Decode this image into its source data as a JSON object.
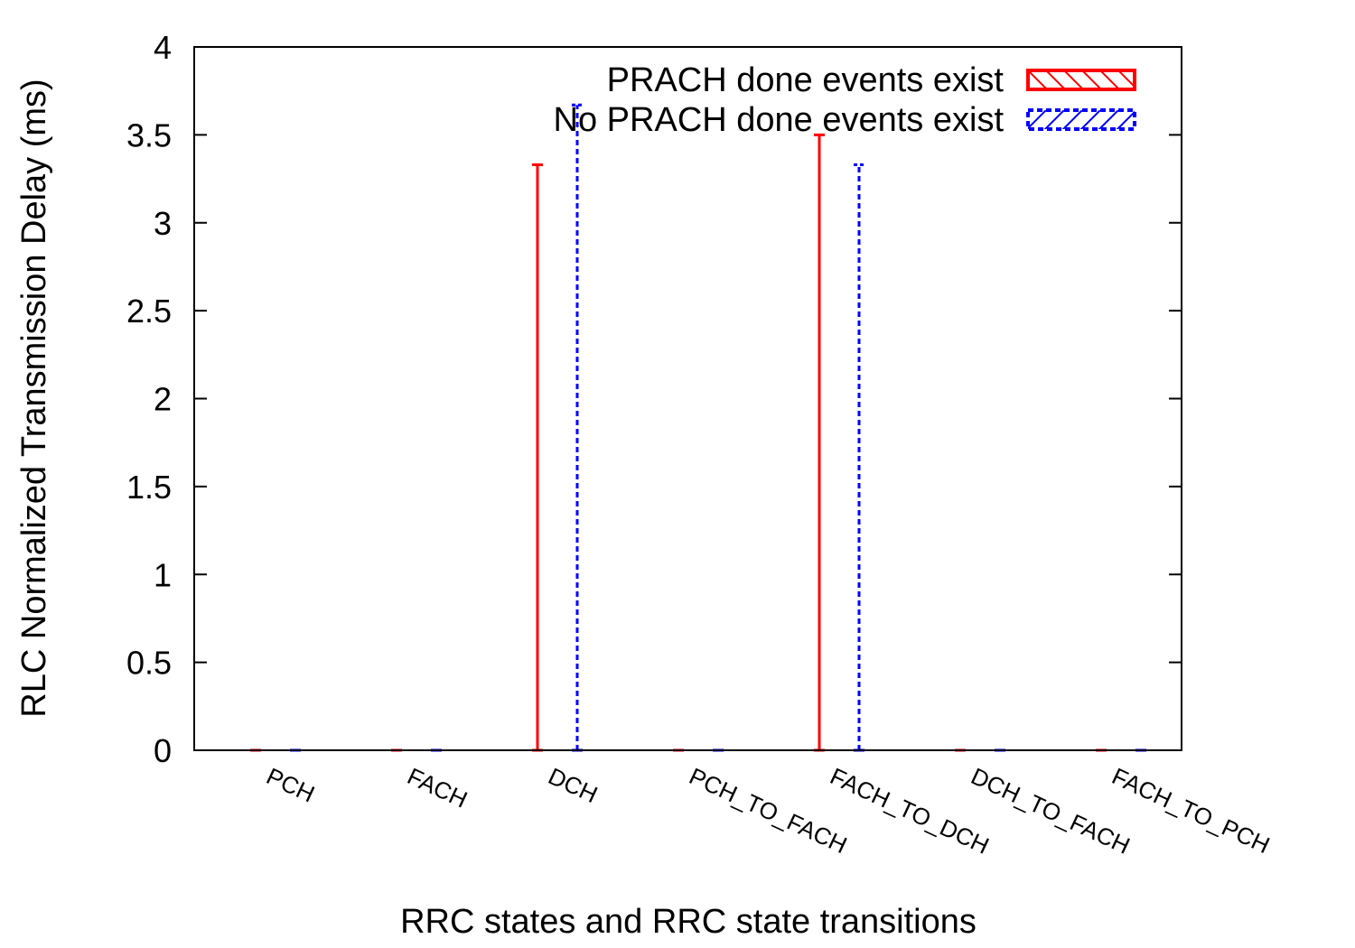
{
  "chart_data": {
    "type": "bar",
    "xlabel": "RRC states and RRC state transitions",
    "ylabel": "RLC Normalized Transmission Delay (ms)",
    "ylim": [
      0,
      4
    ],
    "yticks": [
      "0",
      "0.5",
      "1",
      "1.5",
      "2",
      "2.5",
      "3",
      "3.5",
      "4"
    ],
    "categories": [
      "PCH",
      "FACH",
      "DCH",
      "PCH_TO_FACH",
      "FACH_TO_DCH",
      "DCH_TO_FACH",
      "FACH_TO_PCH"
    ],
    "series": [
      {
        "name": "PRACH done events exist",
        "color": "#ff0000",
        "line_style": "solid",
        "pattern": "hatch-down",
        "values": [
          0,
          0,
          0,
          0,
          0,
          0,
          0
        ],
        "error_high": [
          0,
          0,
          3.33,
          0,
          3.5,
          0,
          0
        ]
      },
      {
        "name": "No PRACH done events exist",
        "color": "#0000ff",
        "line_style": "dashed",
        "pattern": "hatch-up",
        "values": [
          0,
          0,
          0,
          0,
          0,
          0,
          0
        ],
        "error_high": [
          0,
          0,
          3.67,
          0,
          3.33,
          0,
          0
        ]
      }
    ],
    "legend_position": "top-right",
    "grid": false
  }
}
